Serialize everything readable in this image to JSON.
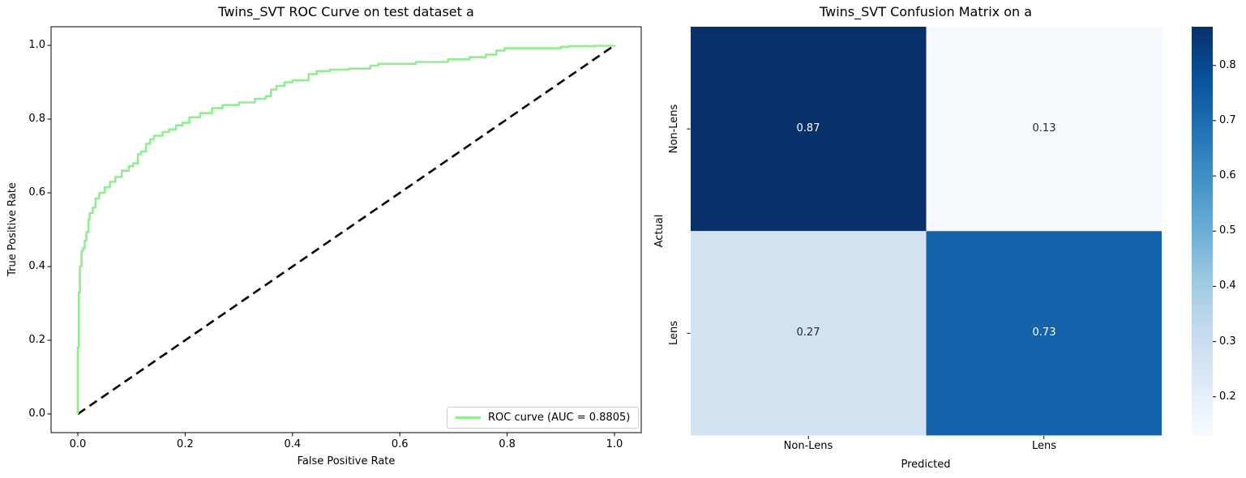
{
  "figure": {
    "background": "#ffffff"
  },
  "chart_data": [
    {
      "type": "line",
      "title": "Twins_SVT ROC Curve on test dataset a",
      "xlabel": "False Positive Rate",
      "ylabel": "True Positive Rate",
      "x_ticks": [
        "0.0",
        "0.2",
        "0.4",
        "0.6",
        "0.8",
        "1.0"
      ],
      "y_ticks": [
        "0.0",
        "0.2",
        "0.4",
        "0.6",
        "0.8",
        "1.0"
      ],
      "xlim": [
        -0.05,
        1.05
      ],
      "ylim": [
        -0.05,
        1.05
      ],
      "grid": false,
      "auc": 0.8805,
      "legend": {
        "position": "lower right",
        "label": "ROC curve (AUC = 0.8805)"
      },
      "series": [
        {
          "name": "ROC curve",
          "color": "#90ee90",
          "style": "solid",
          "fpr": [
            0.0,
            0.0,
            0.002,
            0.002,
            0.004,
            0.004,
            0.007,
            0.007,
            0.01,
            0.013,
            0.016,
            0.02,
            0.022,
            0.028,
            0.033,
            0.04,
            0.05,
            0.06,
            0.07,
            0.082,
            0.095,
            0.103,
            0.112,
            0.118,
            0.127,
            0.135,
            0.142,
            0.158,
            0.17,
            0.183,
            0.195,
            0.208,
            0.228,
            0.25,
            0.27,
            0.3,
            0.33,
            0.35,
            0.36,
            0.37,
            0.385,
            0.4,
            0.43,
            0.445,
            0.47,
            0.505,
            0.545,
            0.56,
            0.63,
            0.69,
            0.73,
            0.76,
            0.78,
            0.795,
            0.9,
            0.915,
            0.965,
            1.0
          ],
          "tpr": [
            0.0,
            0.18,
            0.2,
            0.33,
            0.345,
            0.4,
            0.415,
            0.443,
            0.45,
            0.47,
            0.494,
            0.528,
            0.545,
            0.56,
            0.585,
            0.6,
            0.615,
            0.63,
            0.643,
            0.66,
            0.672,
            0.68,
            0.705,
            0.712,
            0.733,
            0.745,
            0.755,
            0.765,
            0.772,
            0.783,
            0.79,
            0.805,
            0.816,
            0.83,
            0.838,
            0.845,
            0.855,
            0.862,
            0.88,
            0.89,
            0.9,
            0.905,
            0.922,
            0.93,
            0.934,
            0.937,
            0.945,
            0.95,
            0.955,
            0.962,
            0.968,
            0.975,
            0.986,
            0.992,
            0.996,
            0.998,
            0.999,
            1.0
          ]
        },
        {
          "name": "chance diagonal",
          "color": "#000000",
          "style": "dashed",
          "fpr": [
            0,
            1
          ],
          "tpr": [
            0,
            1
          ]
        }
      ]
    },
    {
      "type": "heatmap",
      "title": "Twins_SVT Confusion Matrix on a",
      "xlabel": "Predicted",
      "ylabel": "Actual",
      "row_labels": [
        "Non-Lens",
        "Lens"
      ],
      "col_labels": [
        "Non-Lens",
        "Lens"
      ],
      "values": [
        [
          0.87,
          0.13
        ],
        [
          0.27,
          0.73
        ]
      ],
      "cell_colors": [
        [
          "#08306b",
          "#f6fafe"
        ],
        [
          "#d3e3f2",
          "#1563aa"
        ]
      ],
      "cell_text_colors": [
        [
          "#ffffff",
          "#262626"
        ],
        [
          "#262626",
          "#ffffff"
        ]
      ],
      "colormap": "Blues",
      "colormap_anchors": [
        "#f7fbff",
        "#deebf7",
        "#c6dbef",
        "#9ecae1",
        "#6baed6",
        "#4292c6",
        "#2171b5",
        "#08519c",
        "#08306b"
      ],
      "colorbar": {
        "vmin": 0.13,
        "vmax": 0.87,
        "tick_labels": [
          "0.8",
          "0.7",
          "0.6",
          "0.5",
          "0.4",
          "0.3",
          "0.2"
        ],
        "tick_values": [
          0.8,
          0.7,
          0.6,
          0.5,
          0.4,
          0.3,
          0.2
        ]
      }
    }
  ]
}
